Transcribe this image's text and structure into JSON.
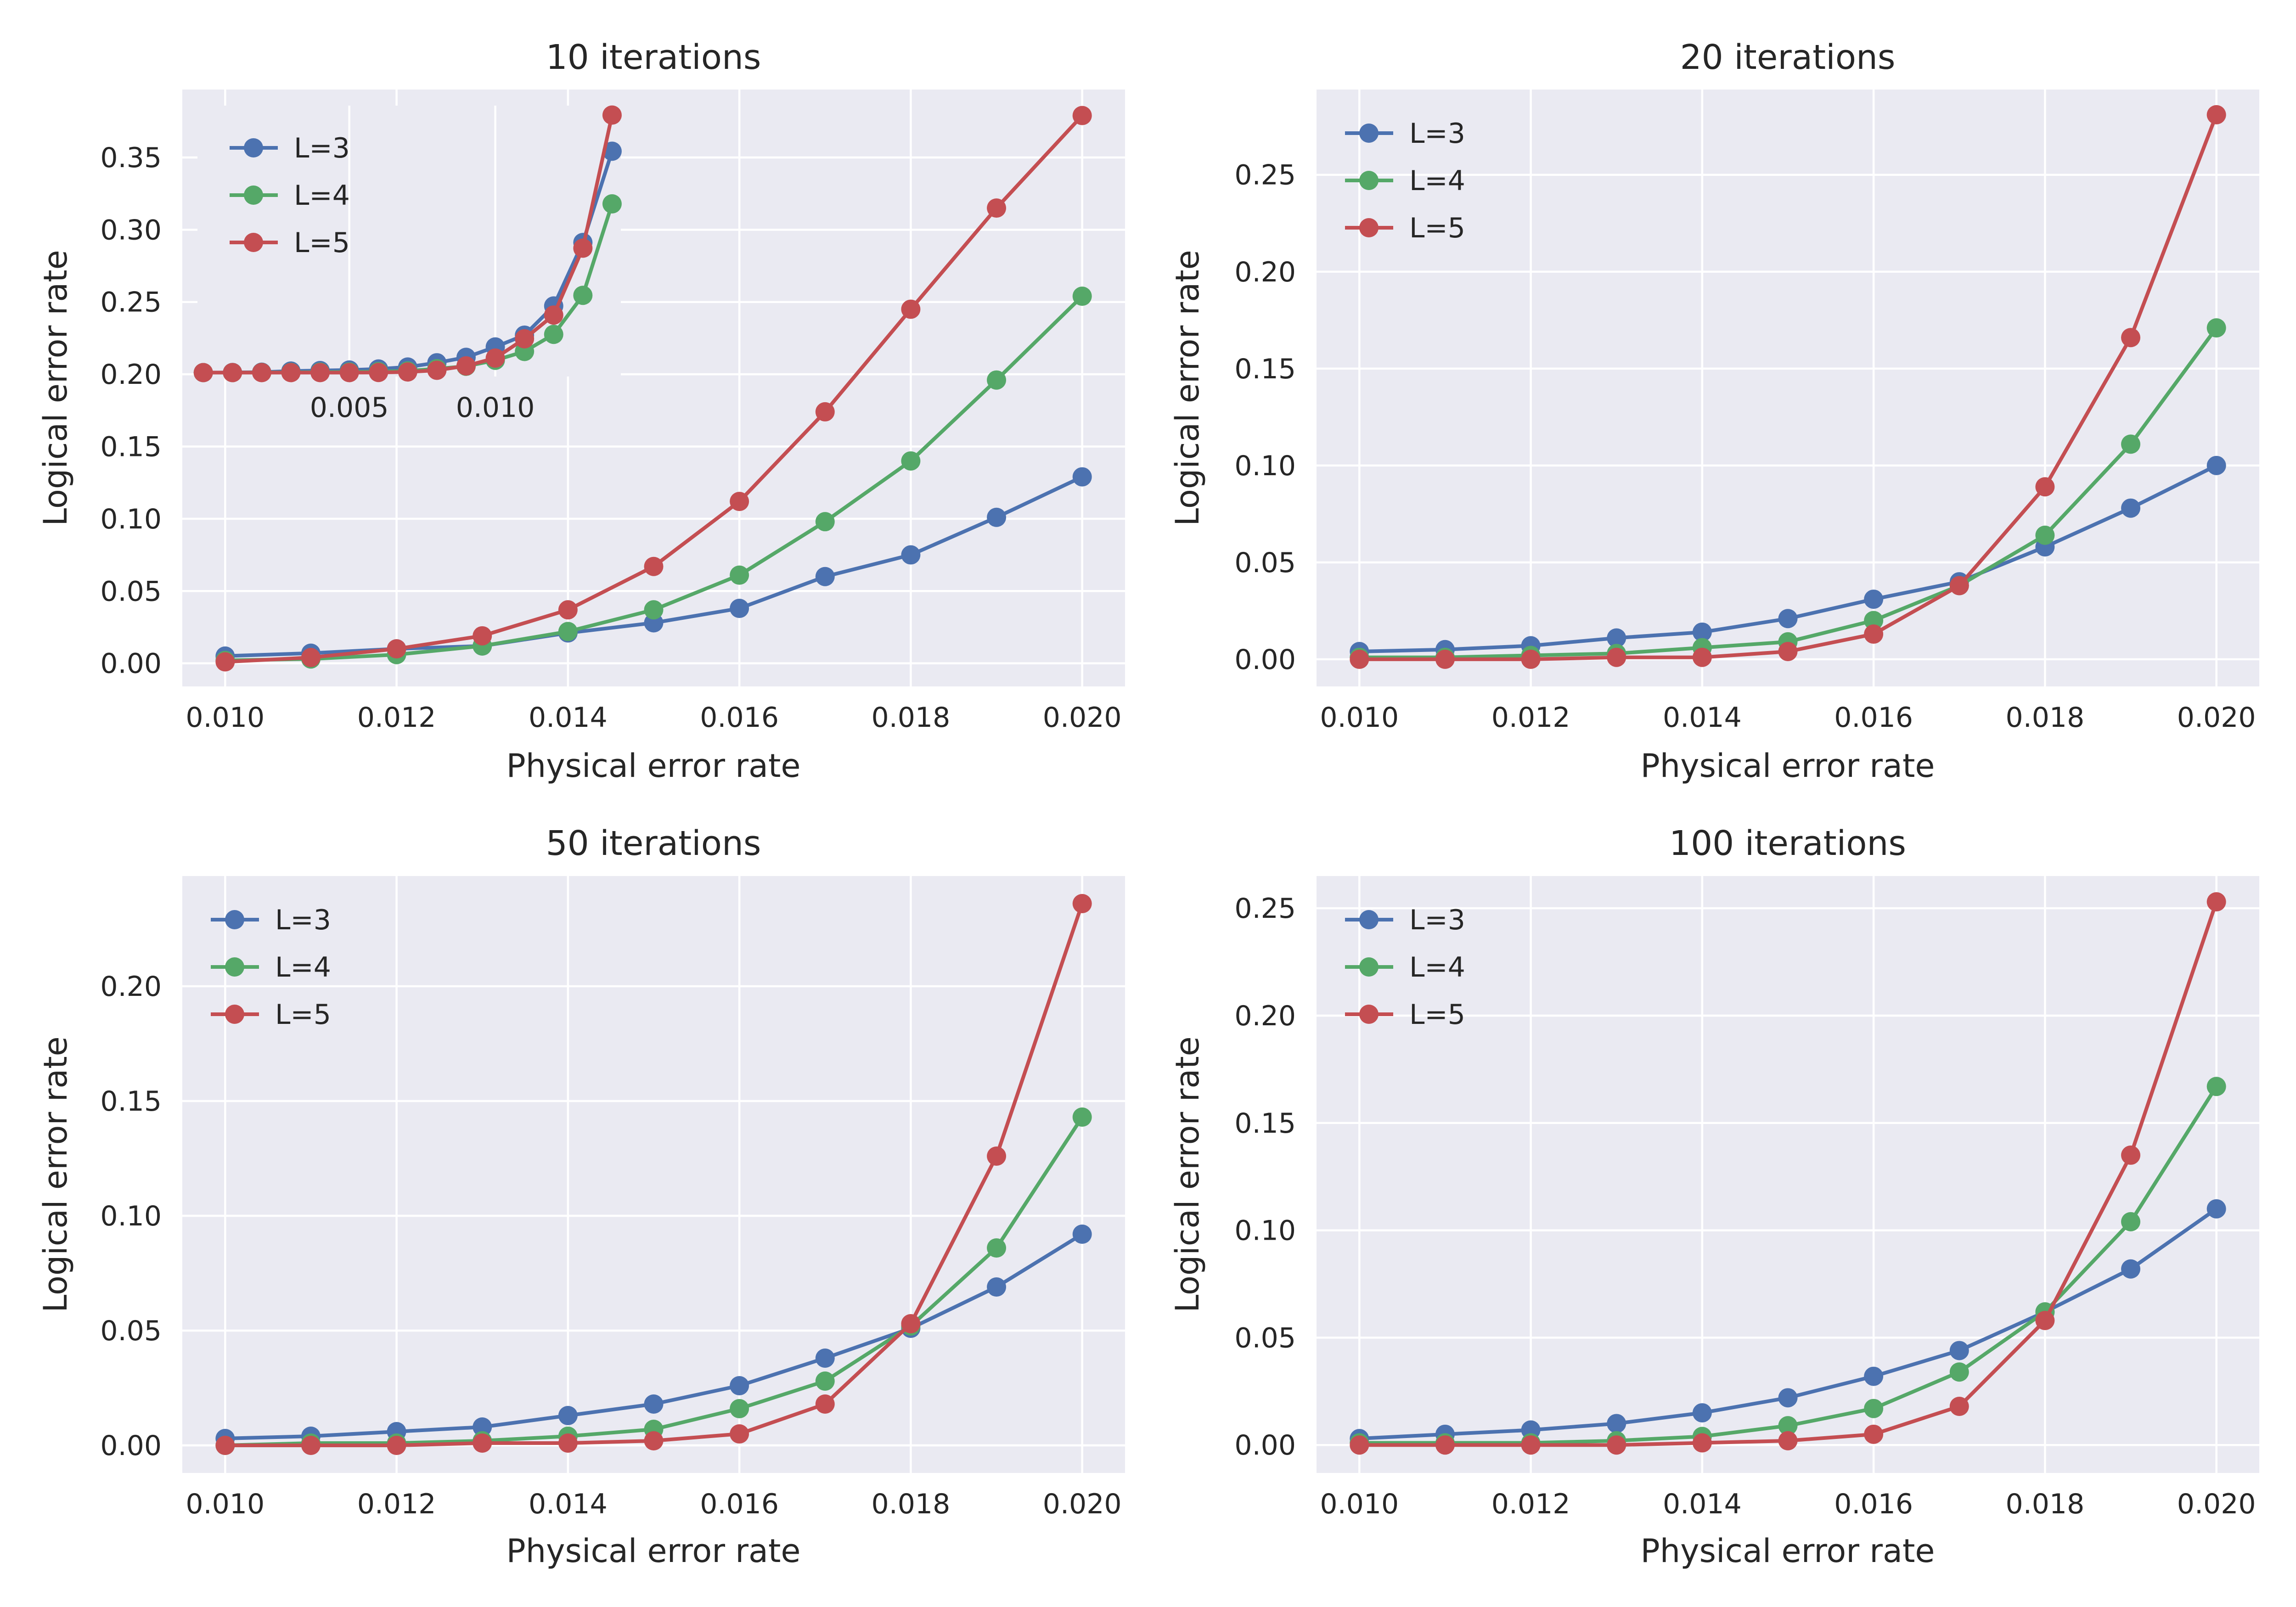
{
  "colors": {
    "L=3": "#4c72b0",
    "L=4": "#55a868",
    "L=5": "#c44e52",
    "axes_background": "#eaeaf2",
    "grid": "#ffffff",
    "text": "#262626"
  },
  "chart_data": [
    {
      "type": "line",
      "title": "10 iterations",
      "xlabel": "Physical error rate",
      "ylabel": "Logical error rate",
      "xlim": [
        0.0095,
        0.0205
      ],
      "ylim": [
        -0.016,
        0.397
      ],
      "xticks": [
        "0.010",
        "0.012",
        "0.014",
        "0.016",
        "0.018",
        "0.020"
      ],
      "yticks": [
        "0.00",
        "0.05",
        "0.10",
        "0.15",
        "0.20",
        "0.25",
        "0.30",
        "0.35"
      ],
      "grid": true,
      "legend": "upper-left (inside inset)",
      "x": [
        0.01,
        0.011,
        0.012,
        0.013,
        0.014,
        0.015,
        0.016,
        0.017,
        0.018,
        0.019,
        0.02
      ],
      "series": [
        {
          "name": "L=3",
          "values": [
            0.005,
            0.007,
            0.01,
            0.012,
            0.021,
            0.028,
            0.038,
            0.06,
            0.075,
            0.101,
            0.129
          ]
        },
        {
          "name": "L=4",
          "values": [
            0.002,
            0.003,
            0.006,
            0.012,
            0.022,
            0.037,
            0.061,
            0.098,
            0.14,
            0.196,
            0.254
          ]
        },
        {
          "name": "L=5",
          "values": [
            0.001,
            0.004,
            0.01,
            0.019,
            0.037,
            0.067,
            0.112,
            0.174,
            0.245,
            0.315,
            0.379
          ]
        }
      ],
      "inset": {
        "xticks": [
          "0.005",
          "0.010"
        ],
        "x": [
          0.0,
          0.001,
          0.002,
          0.003,
          0.004,
          0.005,
          0.006,
          0.007,
          0.008,
          0.009,
          0.01,
          0.011,
          0.012,
          0.013,
          0.014
        ],
        "series": [
          {
            "name": "L=3",
            "values": [
              0.0,
              0.0001,
              0.0003,
              0.0012,
              0.0016,
              0.002,
              0.0028,
              0.0043,
              0.0076,
              0.0118,
              0.0198,
              0.0289,
              0.0514,
              0.1004,
              0.1708
            ]
          },
          {
            "name": "L=4",
            "values": [
              0.0,
              0.0,
              0.0001,
              0.0002,
              0.0004,
              0.0005,
              0.0008,
              0.0013,
              0.003,
              0.0049,
              0.0095,
              0.0163,
              0.0295,
              0.0596,
              0.1302
            ]
          },
          {
            "name": "L=5",
            "values": [
              0.0,
              0.0,
              0.0,
              0.0,
              0.0,
              0.0,
              0.0001,
              0.0005,
              0.0018,
              0.0052,
              0.0112,
              0.0261,
              0.0444,
              0.096,
              0.1987
            ]
          }
        ]
      }
    },
    {
      "type": "line",
      "title": "20 iterations",
      "xlabel": "Physical error rate",
      "ylabel": "Logical error rate",
      "xlim": [
        0.0095,
        0.0205
      ],
      "ylim": [
        -0.014,
        0.294
      ],
      "xticks": [
        "0.010",
        "0.012",
        "0.014",
        "0.016",
        "0.018",
        "0.020"
      ],
      "yticks": [
        "0.00",
        "0.05",
        "0.10",
        "0.15",
        "0.20",
        "0.25"
      ],
      "grid": true,
      "legend": "upper-left",
      "x": [
        0.01,
        0.011,
        0.012,
        0.013,
        0.014,
        0.015,
        0.016,
        0.017,
        0.018,
        0.019,
        0.02
      ],
      "series": [
        {
          "name": "L=3",
          "values": [
            0.004,
            0.005,
            0.007,
            0.011,
            0.014,
            0.021,
            0.031,
            0.04,
            0.058,
            0.078,
            0.1
          ]
        },
        {
          "name": "L=4",
          "values": [
            0.001,
            0.001,
            0.002,
            0.003,
            0.006,
            0.009,
            0.02,
            0.038,
            0.064,
            0.111,
            0.171
          ]
        },
        {
          "name": "L=5",
          "values": [
            0.0,
            0.0,
            0.0,
            0.001,
            0.001,
            0.004,
            0.013,
            0.038,
            0.089,
            0.166,
            0.281
          ]
        }
      ]
    },
    {
      "type": "line",
      "title": "50 iterations",
      "xlabel": "Physical error rate",
      "ylabel": "Logical error rate",
      "xlim": [
        0.0095,
        0.0205
      ],
      "ylim": [
        -0.012,
        0.248
      ],
      "xticks": [
        "0.010",
        "0.012",
        "0.014",
        "0.016",
        "0.018",
        "0.020"
      ],
      "yticks": [
        "0.00",
        "0.05",
        "0.10",
        "0.15",
        "0.20"
      ],
      "grid": true,
      "legend": "upper-left",
      "x": [
        0.01,
        0.011,
        0.012,
        0.013,
        0.014,
        0.015,
        0.016,
        0.017,
        0.018,
        0.019,
        0.02
      ],
      "series": [
        {
          "name": "L=3",
          "values": [
            0.003,
            0.004,
            0.006,
            0.008,
            0.013,
            0.018,
            0.026,
            0.038,
            0.051,
            0.069,
            0.092
          ]
        },
        {
          "name": "L=4",
          "values": [
            0.0,
            0.001,
            0.001,
            0.002,
            0.004,
            0.007,
            0.016,
            0.028,
            0.052,
            0.086,
            0.143
          ]
        },
        {
          "name": "L=5",
          "values": [
            0.0,
            0.0,
            0.0,
            0.001,
            0.001,
            0.002,
            0.005,
            0.018,
            0.053,
            0.126,
            0.236
          ]
        }
      ]
    },
    {
      "type": "line",
      "title": "100 iterations",
      "xlabel": "Physical error rate",
      "ylabel": "Logical error rate",
      "xlim": [
        0.0095,
        0.0205
      ],
      "ylim": [
        -0.013,
        0.265
      ],
      "xticks": [
        "0.010",
        "0.012",
        "0.014",
        "0.016",
        "0.018",
        "0.020"
      ],
      "yticks": [
        "0.00",
        "0.05",
        "0.10",
        "0.15",
        "0.20",
        "0.25"
      ],
      "grid": true,
      "legend": "upper-left",
      "x": [
        0.01,
        0.011,
        0.012,
        0.013,
        0.014,
        0.015,
        0.016,
        0.017,
        0.018,
        0.019,
        0.02
      ],
      "series": [
        {
          "name": "L=3",
          "values": [
            0.003,
            0.005,
            0.007,
            0.01,
            0.015,
            0.022,
            0.032,
            0.044,
            0.062,
            0.082,
            0.11
          ]
        },
        {
          "name": "L=4",
          "values": [
            0.001,
            0.001,
            0.001,
            0.002,
            0.004,
            0.009,
            0.017,
            0.034,
            0.062,
            0.104,
            0.167
          ]
        },
        {
          "name": "L=5",
          "values": [
            0.0,
            0.0,
            0.0,
            0.0,
            0.001,
            0.002,
            0.005,
            0.018,
            0.058,
            0.135,
            0.253
          ]
        }
      ]
    }
  ]
}
